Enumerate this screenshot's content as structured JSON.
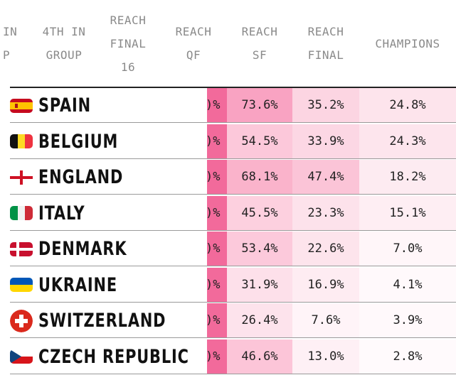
{
  "headers": {
    "col1": "IN\nP",
    "col2": "4TH IN\nGROUP",
    "col3": "REACH\nFINAL\n16",
    "col4": "REACH\nQF",
    "col5": "REACH\nSF",
    "col6": "REACH\nFINAL",
    "col7": "CHAMPIONS"
  },
  "rows": [
    {
      "team": "SPAIN",
      "qf": ")%",
      "sf": "73.6%",
      "final": "35.2%",
      "champions": "24.8%",
      "flag": "spain-flag-icon"
    },
    {
      "team": "BELGIUM",
      "qf": ")%",
      "sf": "54.5%",
      "final": "33.9%",
      "champions": "24.3%",
      "flag": "belgium-flag-icon"
    },
    {
      "team": "ENGLAND",
      "qf": ")%",
      "sf": "68.1%",
      "final": "47.4%",
      "champions": "18.2%",
      "flag": "england-flag-icon"
    },
    {
      "team": "ITALY",
      "qf": ")%",
      "sf": "45.5%",
      "final": "23.3%",
      "champions": "15.1%",
      "flag": "italy-flag-icon"
    },
    {
      "team": "DENMARK",
      "qf": ")%",
      "sf": "53.4%",
      "final": "22.6%",
      "champions": "7.0%",
      "flag": "denmark-flag-icon"
    },
    {
      "team": "UKRAINE",
      "qf": ")%",
      "sf": "31.9%",
      "final": "16.9%",
      "champions": "4.1%",
      "flag": "ukraine-flag-icon"
    },
    {
      "team": "SWITZERLAND",
      "qf": ")%",
      "sf": "26.4%",
      "final": "7.6%",
      "champions": "3.9%",
      "flag": "switzerland-flag-icon"
    },
    {
      "team": "CZECH REPUBLIC",
      "qf": ")%",
      "sf": "46.6%",
      "final": "13.0%",
      "champions": "2.8%",
      "flag": "czech-flag-icon"
    }
  ],
  "colors": {
    "sf": [
      "#f9a3c2",
      "#fcc8da",
      "#fab3cb",
      "#fdd0df",
      "#fcc9db",
      "#fde0ea",
      "#fde3ec",
      "#fcc5d8"
    ],
    "final": [
      "#fcd5e2",
      "#fcd7e4",
      "#fbc4d7",
      "#fde2eb",
      "#fde4ec",
      "#feecf2",
      "#fff4f8",
      "#fef0f5"
    ],
    "champions": [
      "#fde4ec",
      "#fde5ed",
      "#fdebf1",
      "#feeef3",
      "#fff6f9",
      "#fff9fb",
      "#fff9fb",
      "#fffafc"
    ]
  }
}
